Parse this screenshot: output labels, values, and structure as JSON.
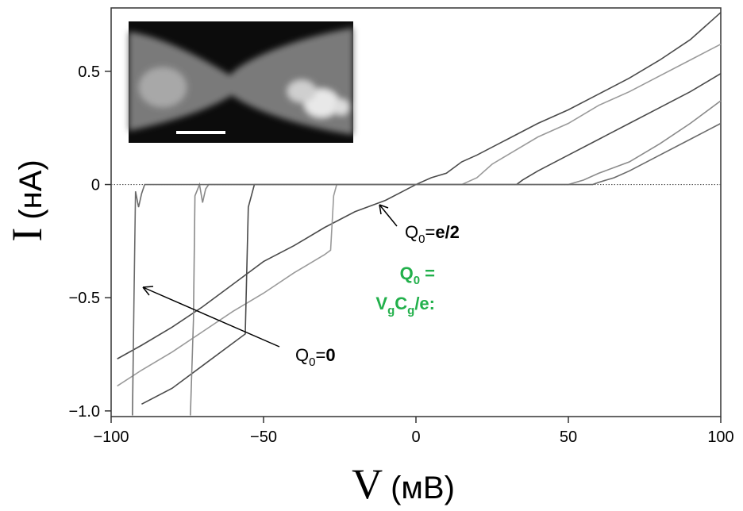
{
  "chart_data": {
    "type": "line",
    "ylabel_parts": [
      "I",
      "(нА)"
    ],
    "xlabel_parts": [
      "V",
      "(мВ)"
    ],
    "xlim": [
      -100,
      100
    ],
    "ylim": [
      -1.025,
      0.78
    ],
    "xticks": [
      {
        "value": -100,
        "label": "−100"
      },
      {
        "value": -50,
        "label": "−50"
      },
      0,
      50,
      100
    ],
    "yticks": [
      {
        "value": -1.0,
        "label": "−1.0"
      },
      {
        "value": -0.5,
        "label": "−0.5"
      },
      0,
      0.5
    ],
    "zero_line": true,
    "series": [
      {
        "color": "#4a4a4a",
        "x": [
          -98,
          -90,
          -80,
          -70,
          -60,
          -50,
          -40,
          -30,
          -20,
          -10,
          0,
          5,
          10,
          15,
          20,
          30,
          40,
          50,
          60,
          70,
          80,
          90,
          100
        ],
        "values": [
          -0.77,
          -0.71,
          -0.63,
          -0.54,
          -0.44,
          -0.34,
          -0.27,
          -0.19,
          -0.12,
          -0.07,
          0.0,
          0.03,
          0.05,
          0.1,
          0.13,
          0.2,
          0.27,
          0.33,
          0.4,
          0.47,
          0.55,
          0.64,
          0.76
        ]
      },
      {
        "color": "#9a9a9a",
        "x": [
          -98,
          -90,
          -80,
          -70,
          -60,
          -50,
          -40,
          -30,
          -28,
          -27,
          -26,
          0,
          15,
          20,
          25,
          30,
          40,
          50,
          60,
          70,
          80,
          90,
          100
        ],
        "values": [
          -0.89,
          -0.82,
          -0.74,
          -0.65,
          -0.56,
          -0.48,
          -0.39,
          -0.31,
          -0.29,
          -0.05,
          0.0,
          0.0,
          0.0,
          0.03,
          0.09,
          0.13,
          0.21,
          0.27,
          0.35,
          0.41,
          0.48,
          0.55,
          0.62
        ]
      },
      {
        "color": "#4a4a4a",
        "x": [
          -90,
          -80,
          -70,
          -60,
          -56,
          -55,
          -53,
          0,
          33,
          35,
          40,
          50,
          60,
          70,
          80,
          90,
          100
        ],
        "values": [
          -0.97,
          -0.9,
          -0.8,
          -0.7,
          -0.66,
          -0.1,
          0.0,
          0.0,
          0.0,
          0.02,
          0.06,
          0.13,
          0.2,
          0.27,
          0.34,
          0.41,
          0.49
        ]
      },
      {
        "color": "#8a8a8a",
        "x": [
          -74,
          -73,
          -72.5,
          -71,
          -70,
          -69,
          -68,
          0,
          50,
          55,
          60,
          70,
          80,
          90,
          100
        ],
        "values": [
          -1.02,
          -0.6,
          -0.05,
          0.0,
          -0.08,
          -0.02,
          0.0,
          0.0,
          0.0,
          0.02,
          0.05,
          0.1,
          0.18,
          0.27,
          0.37
        ]
      },
      {
        "color": "#6a6a6a",
        "x": [
          -93,
          -92.5,
          -92,
          -91,
          -90,
          -89,
          0,
          58,
          60,
          65,
          70,
          80,
          90,
          100
        ],
        "values": [
          -1.02,
          -0.5,
          -0.03,
          -0.1,
          -0.04,
          0.0,
          0.0,
          0.0,
          0.01,
          0.03,
          0.06,
          0.13,
          0.2,
          0.27
        ]
      }
    ],
    "annotations": [
      {
        "parts": [
          "Q",
          "0",
          "=",
          "e/2"
        ]
      },
      {
        "parts": [
          "Q",
          "0",
          "=",
          "0"
        ]
      }
    ],
    "formula": {
      "line1": [
        "Q",
        "0",
        " ="
      ],
      "line2": [
        "V",
        "g",
        "C",
        "g",
        "/e:"
      ],
      "color": "#22b04b"
    }
  }
}
